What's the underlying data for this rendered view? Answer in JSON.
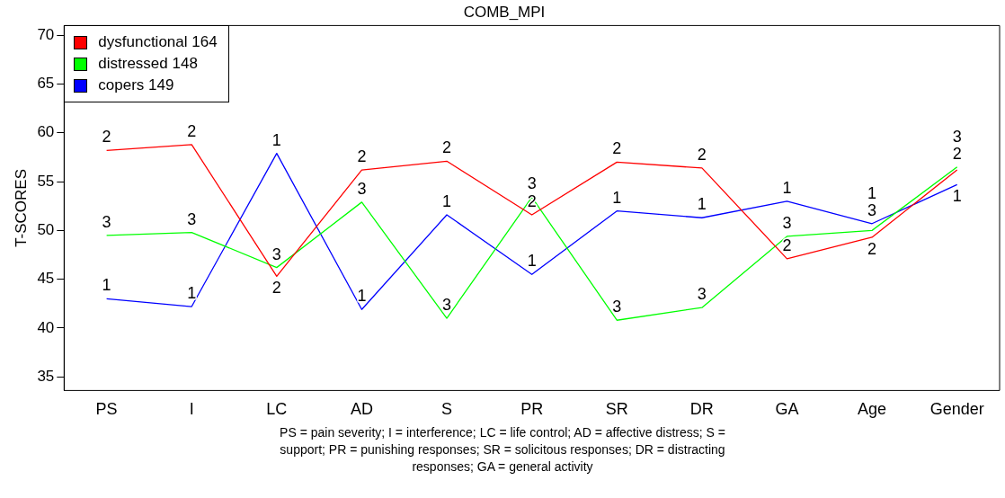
{
  "chart_data": {
    "type": "line",
    "title": "COMB_MPI",
    "ylabel": "T-SCORES",
    "categories": [
      "PS",
      "I",
      "LC",
      "AD",
      "S",
      "PR",
      "SR",
      "DR",
      "GA",
      "Age",
      "Gender"
    ],
    "series": [
      {
        "name": "dysfunctional 164",
        "color": "#ff0000",
        "values": [
          58.2,
          58.8,
          45.3,
          56.2,
          57.1,
          51.6,
          57.0,
          56.4,
          47.1,
          49.3,
          56.2
        ]
      },
      {
        "name": "distressed 148",
        "color": "#00ff00",
        "values": [
          49.5,
          49.8,
          46.2,
          52.9,
          41.0,
          53.4,
          40.8,
          42.1,
          49.4,
          50.0,
          56.5
        ]
      },
      {
        "name": "copers 149",
        "color": "#0000ff",
        "values": [
          43.0,
          42.2,
          57.9,
          41.9,
          51.6,
          45.5,
          52.0,
          51.3,
          53.0,
          50.7,
          54.7
        ]
      }
    ],
    "ylim": [
      33.6,
      71.0
    ],
    "yticks": [
      35,
      40,
      45,
      50,
      55,
      60,
      65,
      70
    ],
    "grid": false,
    "legend": "top left",
    "marker": "none",
    "line_style": "solid",
    "annotations": [
      {
        "text": "2",
        "x": "PS",
        "y": 58.2
      },
      {
        "text": "2",
        "x": "I",
        "y": 58.8
      },
      {
        "text": "2",
        "x": "LC",
        "y": 45.3
      },
      {
        "text": "2",
        "x": "AD",
        "y": 56.2
      },
      {
        "text": "2",
        "x": "S",
        "y": 57.1
      },
      {
        "text": "2",
        "x": "PR",
        "y": 51.6
      },
      {
        "text": "2",
        "x": "SR",
        "y": 57.0
      },
      {
        "text": "2",
        "x": "DR",
        "y": 56.4
      },
      {
        "text": "2",
        "x": "GA",
        "y": 47.1
      },
      {
        "text": "2",
        "x": "Age",
        "y": 49.3
      },
      {
        "text": "2",
        "x": "Gender",
        "y": 56.2
      },
      {
        "text": "3",
        "x": "PS",
        "y": 49.5
      },
      {
        "text": "3",
        "x": "I",
        "y": 49.8
      },
      {
        "text": "3",
        "x": "LC",
        "y": 46.2
      },
      {
        "text": "3",
        "x": "AD",
        "y": 52.9
      },
      {
        "text": "3",
        "x": "S",
        "y": 41.0
      },
      {
        "text": "3",
        "x": "PR",
        "y": 53.4
      },
      {
        "text": "3",
        "x": "SR",
        "y": 40.8
      },
      {
        "text": "3",
        "x": "DR",
        "y": 42.1
      },
      {
        "text": "3",
        "x": "GA",
        "y": 49.4
      },
      {
        "text": "3",
        "x": "Age",
        "y": 50.0
      },
      {
        "text": "3",
        "x": "Gender",
        "y": 56.5
      },
      {
        "text": "1",
        "x": "PS",
        "y": 43.0
      },
      {
        "text": "1",
        "x": "I",
        "y": 42.2
      },
      {
        "text": "1",
        "x": "LC",
        "y": 57.9
      },
      {
        "text": "1",
        "x": "AD",
        "y": 41.9
      },
      {
        "text": "1",
        "x": "S",
        "y": 51.6
      },
      {
        "text": "1",
        "x": "PR",
        "y": 45.5
      },
      {
        "text": "1",
        "x": "SR",
        "y": 52.0
      },
      {
        "text": "1",
        "x": "DR",
        "y": 51.3
      },
      {
        "text": "1",
        "x": "GA",
        "y": 53.0
      },
      {
        "text": "1",
        "x": "Age",
        "y": 50.7
      },
      {
        "text": "1",
        "x": "Gender",
        "y": 54.7
      },
      "PS = pain severity; I = interference; LC = life control; AD = affective distress; S = support; PR = punishing responses; SR = solicitous responses; DR = distracting responses; GA = general activity"
    ]
  }
}
